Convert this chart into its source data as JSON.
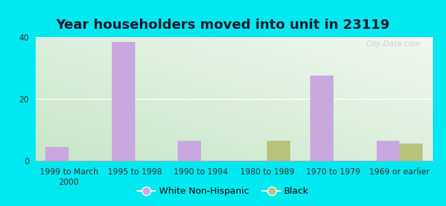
{
  "title": "Year householders moved into unit in 23119",
  "categories": [
    "1999 to March\n2000",
    "1995 to 1998",
    "1990 to 1994",
    "1980 to 1989",
    "1970 to 1979",
    "1969 or earlier"
  ],
  "white_values": [
    4.5,
    38.5,
    6.5,
    0,
    27.5,
    6.5
  ],
  "black_values": [
    0,
    0,
    0,
    6.5,
    0,
    5.5
  ],
  "white_color": "#c9a8e0",
  "black_color": "#b5c47a",
  "ylim": [
    0,
    40
  ],
  "yticks": [
    0,
    20,
    40
  ],
  "background_outer": "#00e8f0",
  "bg_left": "#d4ecd0",
  "bg_right": "#e8f5f0",
  "bg_top": "#f0f8f5",
  "bar_width": 0.35,
  "legend_white": "White Non-Hispanic",
  "legend_black": "Black",
  "title_fontsize": 14,
  "tick_fontsize": 8.5,
  "legend_fontsize": 9.5,
  "watermark": "City-Data.com"
}
